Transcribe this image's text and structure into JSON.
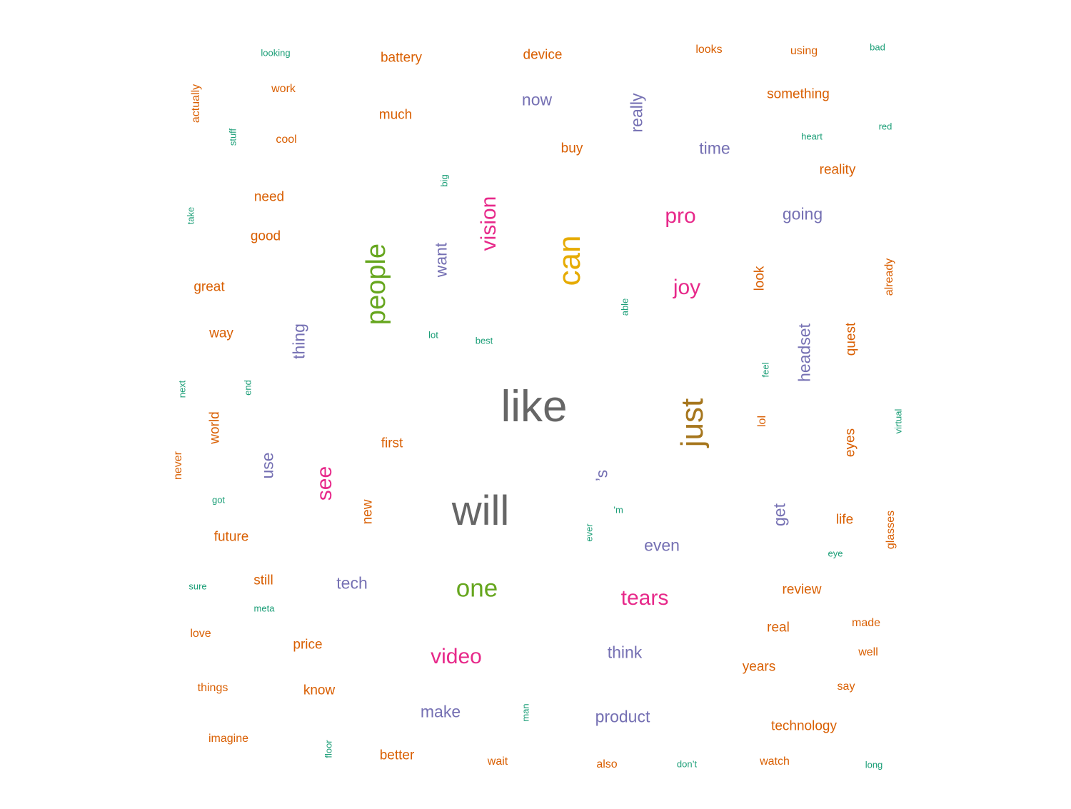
{
  "chart_data": {
    "type": "wordcloud",
    "colors": {
      "teal": "#1b9e77",
      "orange": "#d95f02",
      "purple": "#7570b3",
      "pink": "#e7298a",
      "green": "#66a61e",
      "gold": "#e6ab02",
      "brown": "#a6761d",
      "gray": "#666666"
    },
    "words": [
      {
        "text": "like",
        "weight": 10,
        "color": "gray",
        "vertical": false
      },
      {
        "text": "will",
        "weight": 9,
        "color": "gray",
        "vertical": false
      },
      {
        "text": "just",
        "weight": 7,
        "color": "brown",
        "vertical": true
      },
      {
        "text": "can",
        "weight": 7,
        "color": "gold",
        "vertical": true
      },
      {
        "text": "people",
        "weight": 6,
        "color": "green",
        "vertical": true
      },
      {
        "text": "one",
        "weight": 5,
        "color": "green",
        "vertical": false
      },
      {
        "text": "tears",
        "weight": 4,
        "color": "pink",
        "vertical": false
      },
      {
        "text": "vision",
        "weight": 4,
        "color": "pink",
        "vertical": true
      },
      {
        "text": "video",
        "weight": 4,
        "color": "pink",
        "vertical": false
      },
      {
        "text": "joy",
        "weight": 4,
        "color": "pink",
        "vertical": false
      },
      {
        "text": "pro",
        "weight": 4,
        "color": "pink",
        "vertical": false
      },
      {
        "text": "see",
        "weight": 4,
        "color": "pink",
        "vertical": true
      },
      {
        "text": "headset",
        "weight": 3,
        "color": "purple",
        "vertical": true
      },
      {
        "text": "thing",
        "weight": 3,
        "color": "purple",
        "vertical": true
      },
      {
        "text": "think",
        "weight": 3,
        "color": "purple",
        "vertical": false
      },
      {
        "text": "get",
        "weight": 3,
        "color": "purple",
        "vertical": true
      },
      {
        "text": "even",
        "weight": 3,
        "color": "purple",
        "vertical": false
      },
      {
        "text": "use",
        "weight": 3,
        "color": "purple",
        "vertical": true
      },
      {
        "text": "tech",
        "weight": 3,
        "color": "purple",
        "vertical": false
      },
      {
        "text": "make",
        "weight": 3,
        "color": "purple",
        "vertical": false
      },
      {
        "text": "product",
        "weight": 3,
        "color": "purple",
        "vertical": false
      },
      {
        "text": "want",
        "weight": 3,
        "color": "purple",
        "vertical": true
      },
      {
        "text": "now",
        "weight": 3,
        "color": "purple",
        "vertical": false
      },
      {
        "text": "really",
        "weight": 3,
        "color": "purple",
        "vertical": true
      },
      {
        "text": "time",
        "weight": 3,
        "color": "purple",
        "vertical": false
      },
      {
        "text": "going",
        "weight": 3,
        "color": "purple",
        "vertical": false
      },
      {
        "text": "’s",
        "weight": 3,
        "color": "purple",
        "vertical": true
      },
      {
        "text": "battery",
        "weight": 2,
        "color": "orange",
        "vertical": false
      },
      {
        "text": "much",
        "weight": 2,
        "color": "orange",
        "vertical": false
      },
      {
        "text": "buy",
        "weight": 2,
        "color": "orange",
        "vertical": false
      },
      {
        "text": "need",
        "weight": 2,
        "color": "orange",
        "vertical": false
      },
      {
        "text": "good",
        "weight": 2,
        "color": "orange",
        "vertical": false
      },
      {
        "text": "world",
        "weight": 2,
        "color": "orange",
        "vertical": true
      },
      {
        "text": "future",
        "weight": 2,
        "color": "orange",
        "vertical": false
      },
      {
        "text": "new",
        "weight": 2,
        "color": "orange",
        "vertical": true
      },
      {
        "text": "price",
        "weight": 2,
        "color": "orange",
        "vertical": false
      },
      {
        "text": "still",
        "weight": 2,
        "color": "orange",
        "vertical": false
      },
      {
        "text": "review",
        "weight": 2,
        "color": "orange",
        "vertical": false
      },
      {
        "text": "real",
        "weight": 2,
        "color": "orange",
        "vertical": false
      },
      {
        "text": "years",
        "weight": 2,
        "color": "orange",
        "vertical": false
      },
      {
        "text": "technology",
        "weight": 2,
        "color": "orange",
        "vertical": false
      },
      {
        "text": "way",
        "weight": 2,
        "color": "orange",
        "vertical": false
      },
      {
        "text": "great",
        "weight": 2,
        "color": "orange",
        "vertical": false
      },
      {
        "text": "something",
        "weight": 2,
        "color": "orange",
        "vertical": false
      },
      {
        "text": "device",
        "weight": 2,
        "color": "orange",
        "vertical": false
      },
      {
        "text": "reality",
        "weight": 2,
        "color": "orange",
        "vertical": false
      },
      {
        "text": "look",
        "weight": 2,
        "color": "orange",
        "vertical": true
      },
      {
        "text": "first",
        "weight": 2,
        "color": "orange",
        "vertical": false
      },
      {
        "text": "better",
        "weight": 2,
        "color": "orange",
        "vertical": false
      },
      {
        "text": "know",
        "weight": 2,
        "color": "orange",
        "vertical": false
      },
      {
        "text": "quest",
        "weight": 2,
        "color": "orange",
        "vertical": true
      },
      {
        "text": "eyes",
        "weight": 2,
        "color": "orange",
        "vertical": true
      },
      {
        "text": "life",
        "weight": 2,
        "color": "orange",
        "vertical": false
      },
      {
        "text": "work",
        "weight": 1,
        "color": "orange",
        "vertical": false
      },
      {
        "text": "cool",
        "weight": 1,
        "color": "orange",
        "vertical": false
      },
      {
        "text": "looks",
        "weight": 1,
        "color": "orange",
        "vertical": false
      },
      {
        "text": "using",
        "weight": 1,
        "color": "orange",
        "vertical": false
      },
      {
        "text": "actually",
        "weight": 1,
        "color": "orange",
        "vertical": true
      },
      {
        "text": "already",
        "weight": 1,
        "color": "orange",
        "vertical": true
      },
      {
        "text": "never",
        "weight": 1,
        "color": "orange",
        "vertical": true
      },
      {
        "text": "glasses",
        "weight": 1,
        "color": "orange",
        "vertical": true
      },
      {
        "text": "lol",
        "weight": 1,
        "color": "orange",
        "vertical": true
      },
      {
        "text": "love",
        "weight": 1,
        "color": "orange",
        "vertical": false
      },
      {
        "text": "things",
        "weight": 1,
        "color": "orange",
        "vertical": false
      },
      {
        "text": "imagine",
        "weight": 1,
        "color": "orange",
        "vertical": false
      },
      {
        "text": "also",
        "weight": 1,
        "color": "orange",
        "vertical": false
      },
      {
        "text": "watch",
        "weight": 1,
        "color": "orange",
        "vertical": false
      },
      {
        "text": "wait",
        "weight": 1,
        "color": "orange",
        "vertical": false
      },
      {
        "text": "made",
        "weight": 1,
        "color": "orange",
        "vertical": false
      },
      {
        "text": "well",
        "weight": 1,
        "color": "orange",
        "vertical": false
      },
      {
        "text": "say",
        "weight": 1,
        "color": "orange",
        "vertical": false
      },
      {
        "text": "looking",
        "weight": 0,
        "color": "teal",
        "vertical": false
      },
      {
        "text": "stuff",
        "weight": 0,
        "color": "teal",
        "vertical": true
      },
      {
        "text": "take",
        "weight": 0,
        "color": "teal",
        "vertical": true
      },
      {
        "text": "big",
        "weight": 0,
        "color": "teal",
        "vertical": true
      },
      {
        "text": "lot",
        "weight": 0,
        "color": "teal",
        "vertical": false
      },
      {
        "text": "best",
        "weight": 0,
        "color": "teal",
        "vertical": false
      },
      {
        "text": "able",
        "weight": 0,
        "color": "teal",
        "vertical": true
      },
      {
        "text": "next",
        "weight": 0,
        "color": "teal",
        "vertical": true
      },
      {
        "text": "end",
        "weight": 0,
        "color": "teal",
        "vertical": true
      },
      {
        "text": "got",
        "weight": 0,
        "color": "teal",
        "vertical": false
      },
      {
        "text": "sure",
        "weight": 0,
        "color": "teal",
        "vertical": false
      },
      {
        "text": "meta",
        "weight": 0,
        "color": "teal",
        "vertical": false
      },
      {
        "text": "floor",
        "weight": 0,
        "color": "teal",
        "vertical": true
      },
      {
        "text": "man",
        "weight": 0,
        "color": "teal",
        "vertical": true
      },
      {
        "text": "ever",
        "weight": 0,
        "color": "teal",
        "vertical": true
      },
      {
        "text": "’m",
        "weight": 0,
        "color": "teal",
        "vertical": false
      },
      {
        "text": "don’t",
        "weight": 0,
        "color": "teal",
        "vertical": false
      },
      {
        "text": "long",
        "weight": 0,
        "color": "teal",
        "vertical": false
      },
      {
        "text": "eye",
        "weight": 0,
        "color": "teal",
        "vertical": false
      },
      {
        "text": "virtual",
        "weight": 0,
        "color": "teal",
        "vertical": true
      },
      {
        "text": "feel",
        "weight": 0,
        "color": "teal",
        "vertical": true
      },
      {
        "text": "heart",
        "weight": 0,
        "color": "teal",
        "vertical": false
      },
      {
        "text": "red",
        "weight": 0,
        "color": "teal",
        "vertical": false
      },
      {
        "text": "bad",
        "weight": 0,
        "color": "teal",
        "vertical": false
      }
    ]
  }
}
